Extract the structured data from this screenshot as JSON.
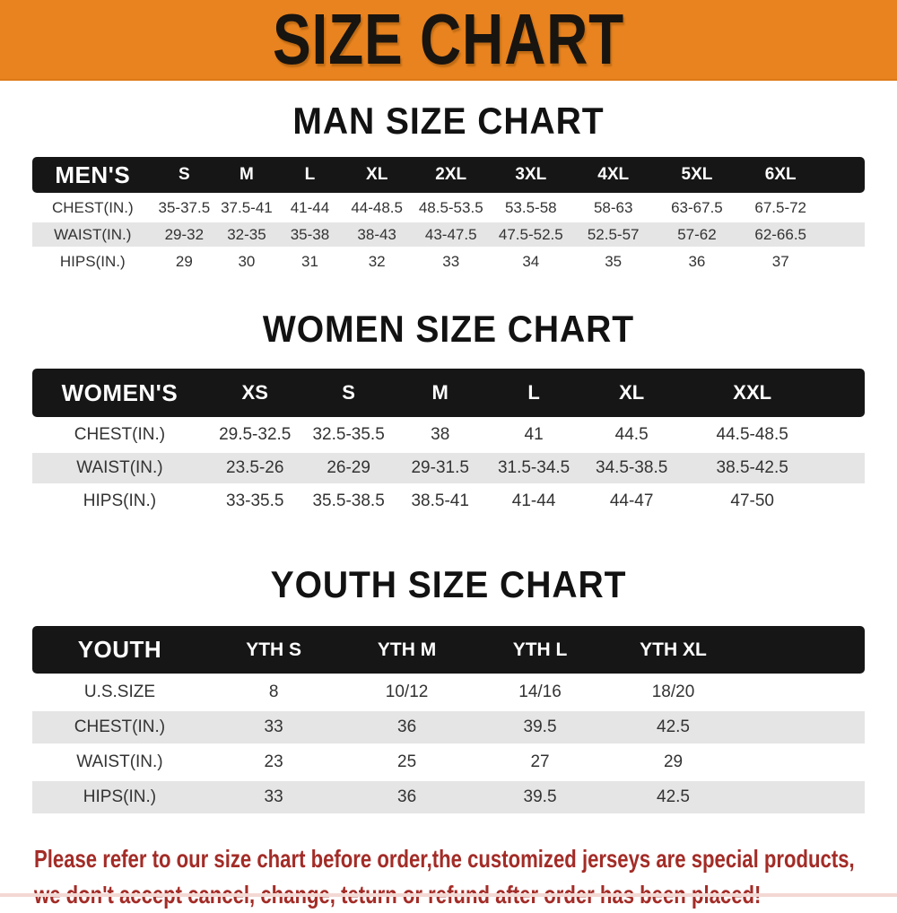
{
  "banner": {
    "title": "SIZE CHART",
    "bg_color": "#E8831F",
    "text_color": "#181410"
  },
  "colors": {
    "table_header_bg": "#161616",
    "row_stripe": "#E5E5E5",
    "disclaimer_text": "#A32C27"
  },
  "sections": [
    {
      "heading": "MAN SIZE CHART",
      "header_label": "MEN'S",
      "columns": [
        "S",
        "M",
        "L",
        "XL",
        "2XL",
        "3XL",
        "4XL",
        "5XL",
        "6XL"
      ],
      "rows": [
        {
          "label": "CHEST(IN.)",
          "values": [
            "35-37.5",
            "37.5-41",
            "41-44",
            "44-48.5",
            "48.5-53.5",
            "53.5-58",
            "58-63",
            "63-67.5",
            "67.5-72"
          ]
        },
        {
          "label": "WAIST(IN.)",
          "values": [
            "29-32",
            "32-35",
            "35-38",
            "38-43",
            "43-47.5",
            "47.5-52.5",
            "52.5-57",
            "57-62",
            "62-66.5"
          ]
        },
        {
          "label": "HIPS(IN.)",
          "values": [
            "29",
            "30",
            "31",
            "32",
            "33",
            "34",
            "35",
            "36",
            "37"
          ]
        }
      ]
    },
    {
      "heading": "WOMEN SIZE CHART",
      "header_label": "WOMEN'S",
      "columns": [
        "XS",
        "S",
        "M",
        "L",
        "XL",
        "XXL"
      ],
      "rows": [
        {
          "label": "CHEST(IN.)",
          "values": [
            "29.5-32.5",
            "32.5-35.5",
            "38",
            "41",
            "44.5",
            "44.5-48.5"
          ]
        },
        {
          "label": "WAIST(IN.)",
          "values": [
            "23.5-26",
            "26-29",
            "29-31.5",
            "31.5-34.5",
            "34.5-38.5",
            "38.5-42.5"
          ]
        },
        {
          "label": "HIPS(IN.)",
          "values": [
            "33-35.5",
            "35.5-38.5",
            "38.5-41",
            "41-44",
            "44-47",
            "47-50"
          ]
        }
      ]
    },
    {
      "heading": "YOUTH SIZE CHART",
      "header_label": "YOUTH",
      "columns": [
        "YTH S",
        "YTH M",
        "YTH L",
        "YTH XL"
      ],
      "rows": [
        {
          "label": "U.S.SIZE",
          "values": [
            "8",
            "10/12",
            "14/16",
            "18/20"
          ]
        },
        {
          "label": "CHEST(IN.)",
          "values": [
            "33",
            "36",
            "39.5",
            "42.5"
          ]
        },
        {
          "label": "WAIST(IN.)",
          "values": [
            "23",
            "25",
            "27",
            "29"
          ]
        },
        {
          "label": "HIPS(IN.)",
          "values": [
            "33",
            "36",
            "39.5",
            "42.5"
          ]
        }
      ]
    }
  ],
  "disclaimer": {
    "line1": "Please refer to our size chart before order,the customized jerseys are special products,",
    "line2": "we don't accept cancel, change, teturn or refund after order has been placed!"
  }
}
